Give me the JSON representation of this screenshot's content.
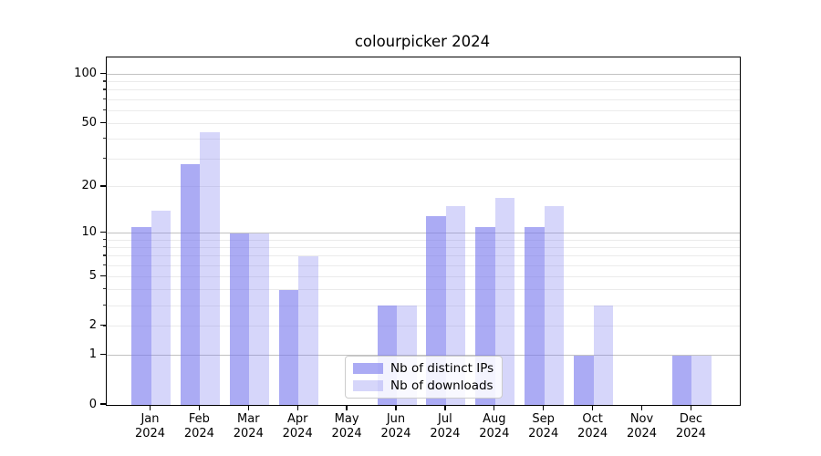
{
  "figure": {
    "background": "#ffffff",
    "text_color": "#000000",
    "spine_color": "#000000",
    "major_gridline_color": "#c2c2c2",
    "minor_gridline_color": "#ebebeb"
  },
  "chart_data": {
    "type": "bar",
    "title": "colourpicker 2024",
    "xlabel": "",
    "ylabel": "",
    "x_year": "2024",
    "categories": [
      "Jan",
      "Feb",
      "Mar",
      "Apr",
      "May",
      "Jun",
      "Jul",
      "Aug",
      "Sep",
      "Oct",
      "Nov",
      "Dec"
    ],
    "series": [
      {
        "name": "Nb of distinct IPs",
        "color": "#7777ee",
        "alpha": 0.62,
        "values": [
          11,
          28,
          10,
          4,
          0,
          3,
          13,
          11,
          11,
          1,
          0,
          1
        ]
      },
      {
        "name": "Nb of downloads",
        "color": "#7777ee",
        "alpha": 0.3,
        "values": [
          14,
          44,
          10,
          7,
          0,
          3,
          15,
          17,
          15,
          3,
          0,
          1
        ]
      }
    ],
    "y_axis": {
      "scale": "log1p",
      "max": 127,
      "tick_values": [
        0,
        1,
        2,
        5,
        10,
        20,
        50,
        100
      ],
      "tick_labels": [
        "0",
        "1",
        "2",
        "5",
        "10",
        "20",
        "50",
        "100"
      ],
      "major_gridlines": [
        1,
        10,
        100
      ],
      "minor_gridlines": [
        2,
        3,
        4,
        5,
        6,
        7,
        8,
        9,
        20,
        30,
        40,
        50,
        60,
        70,
        80,
        90
      ]
    },
    "legend": {
      "position": "bottom-center",
      "entries": [
        "Nb of distinct IPs",
        "Nb of downloads"
      ]
    },
    "grid": true
  }
}
